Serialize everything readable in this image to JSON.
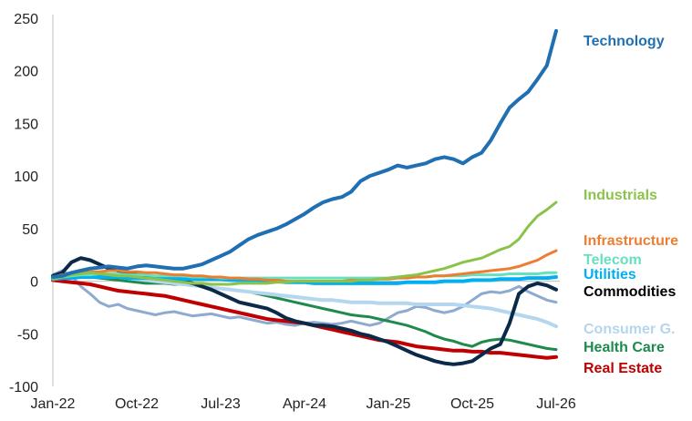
{
  "chart_data": {
    "type": "line",
    "title": "",
    "xlabel": "",
    "ylabel": "",
    "ylim": [
      -100,
      250
    ],
    "yticks": [
      250,
      200,
      150,
      100,
      50,
      0,
      -50,
      -100
    ],
    "xtick_labels": [
      "Jan-22",
      "Oct-22",
      "Jul-23",
      "Apr-24",
      "Jan-25",
      "Oct-25",
      "Jul-26"
    ],
    "grid": false,
    "legend": "direct labels at right end of lines",
    "x": [
      "Jan-22",
      "Feb-22",
      "Mar-22",
      "Apr-22",
      "May-22",
      "Jun-22",
      "Jul-22",
      "Aug-22",
      "Sep-22",
      "Oct-22",
      "Nov-22",
      "Dec-22",
      "Jan-23",
      "Feb-23",
      "Mar-23",
      "Apr-23",
      "May-23",
      "Jun-23",
      "Jul-23",
      "Aug-23",
      "Sep-23",
      "Oct-23",
      "Nov-23",
      "Dec-23",
      "Jan-24",
      "Feb-24",
      "Mar-24",
      "Apr-24",
      "May-24",
      "Jun-24",
      "Jul-24",
      "Aug-24",
      "Sep-24",
      "Oct-24",
      "Nov-24",
      "Dec-24",
      "Jan-25",
      "Feb-25",
      "Mar-25",
      "Apr-25",
      "May-25",
      "Jun-25",
      "Jul-25",
      "Aug-25",
      "Sep-25",
      "Oct-25",
      "Nov-25",
      "Dec-25",
      "Jan-26",
      "Feb-26",
      "Mar-26",
      "Apr-26",
      "May-26",
      "Jun-26",
      "Jul-26"
    ],
    "series": [
      {
        "name": "Technology",
        "color": "#1f6fb2",
        "width": 4,
        "values": [
          4,
          5,
          8,
          10,
          12,
          13,
          14,
          13,
          12,
          14,
          15,
          14,
          13,
          12,
          12,
          14,
          16,
          20,
          24,
          28,
          34,
          40,
          44,
          47,
          50,
          54,
          59,
          64,
          70,
          75,
          78,
          80,
          85,
          95,
          100,
          103,
          106,
          110,
          108,
          110,
          112,
          116,
          118,
          116,
          112,
          118,
          122,
          134,
          150,
          165,
          173,
          180,
          192,
          205,
          238
        ]
      },
      {
        "name": "Industrials",
        "color": "#8bc34a",
        "width": 3,
        "values": [
          2,
          4,
          6,
          7,
          8,
          7,
          6,
          5,
          5,
          4,
          3,
          2,
          1,
          0,
          -1,
          -2,
          -2,
          -3,
          -3,
          -3,
          -2,
          -2,
          -2,
          -2,
          -1,
          -1,
          0,
          0,
          0,
          0,
          0,
          0,
          0,
          1,
          1,
          2,
          3,
          4,
          5,
          6,
          8,
          10,
          12,
          15,
          18,
          20,
          22,
          26,
          30,
          33,
          40,
          52,
          62,
          68,
          75
        ]
      },
      {
        "name": "Infrastructure",
        "color": "#ed7d31",
        "width": 3,
        "values": [
          4,
          6,
          7,
          8,
          9,
          9,
          10,
          10,
          9,
          9,
          8,
          8,
          7,
          6,
          6,
          5,
          5,
          4,
          4,
          3,
          3,
          2,
          2,
          1,
          1,
          0,
          0,
          0,
          0,
          0,
          0,
          0,
          1,
          1,
          1,
          2,
          2,
          3,
          3,
          4,
          4,
          5,
          5,
          6,
          7,
          8,
          9,
          10,
          11,
          12,
          14,
          17,
          20,
          25,
          29
        ]
      },
      {
        "name": "Telecom",
        "color": "#66e0c0",
        "width": 3,
        "values": [
          3,
          4,
          5,
          6,
          6,
          7,
          7,
          7,
          6,
          6,
          6,
          5,
          5,
          5,
          5,
          4,
          4,
          4,
          3,
          3,
          3,
          3,
          3,
          3,
          3,
          3,
          3,
          3,
          3,
          3,
          3,
          3,
          3,
          3,
          3,
          3,
          3,
          4,
          4,
          4,
          4,
          5,
          5,
          5,
          5,
          6,
          6,
          6,
          6,
          7,
          7,
          7,
          7,
          8,
          8
        ]
      },
      {
        "name": "Utilities",
        "color": "#00b0f0",
        "width": 4,
        "values": [
          2,
          3,
          3,
          4,
          4,
          4,
          4,
          4,
          3,
          3,
          3,
          3,
          3,
          3,
          2,
          2,
          2,
          2,
          2,
          1,
          1,
          1,
          1,
          0,
          0,
          -1,
          -1,
          -1,
          -2,
          -2,
          -2,
          -2,
          -2,
          -2,
          -2,
          -2,
          -2,
          -2,
          -1,
          -1,
          -1,
          -1,
          0,
          0,
          0,
          1,
          1,
          1,
          2,
          2,
          2,
          3,
          3,
          3,
          4
        ]
      },
      {
        "name": "Commodities",
        "color": "#0b2a4a",
        "width": 4,
        "values": [
          5,
          8,
          18,
          22,
          20,
          16,
          12,
          10,
          8,
          6,
          5,
          4,
          3,
          2,
          0,
          -2,
          -5,
          -8,
          -12,
          -16,
          -20,
          -22,
          -24,
          -26,
          -30,
          -35,
          -38,
          -40,
          -42,
          -42,
          -43,
          -45,
          -47,
          -50,
          -52,
          -55,
          -58,
          -62,
          -66,
          -70,
          -73,
          -76,
          -78,
          -79,
          -78,
          -76,
          -70,
          -64,
          -60,
          -40,
          -12,
          -5,
          -2,
          -4,
          -8
        ]
      },
      {
        "name": "Consumer G.",
        "color": "#b4d6ee",
        "width": 4,
        "values": [
          2,
          3,
          4,
          5,
          5,
          5,
          5,
          4,
          3,
          2,
          1,
          0,
          -1,
          -2,
          -3,
          -4,
          -5,
          -6,
          -7,
          -8,
          -9,
          -10,
          -11,
          -12,
          -13,
          -14,
          -15,
          -16,
          -17,
          -18,
          -18,
          -19,
          -20,
          -20,
          -20,
          -21,
          -21,
          -21,
          -21,
          -22,
          -22,
          -22,
          -22,
          -22,
          -23,
          -24,
          -25,
          -26,
          -28,
          -30,
          -32,
          -34,
          -36,
          -39,
          -43
        ]
      },
      {
        "name": "Health Care",
        "color": "#1e8a4c",
        "width": 3,
        "values": [
          2,
          3,
          4,
          5,
          4,
          3,
          2,
          1,
          0,
          -1,
          -2,
          -2,
          -2,
          -3,
          -3,
          -4,
          -5,
          -6,
          -7,
          -8,
          -9,
          -10,
          -12,
          -14,
          -16,
          -18,
          -20,
          -22,
          -24,
          -26,
          -28,
          -30,
          -32,
          -33,
          -34,
          -36,
          -38,
          -40,
          -42,
          -45,
          -48,
          -52,
          -55,
          -57,
          -60,
          -62,
          -58,
          -56,
          -55,
          -56,
          -58,
          -60,
          -62,
          -64,
          -65
        ]
      },
      {
        "name": "Real Estate",
        "color": "#c00000",
        "width": 4,
        "values": [
          1,
          0,
          -1,
          -2,
          -3,
          -5,
          -7,
          -9,
          -10,
          -11,
          -12,
          -13,
          -14,
          -16,
          -18,
          -20,
          -22,
          -24,
          -26,
          -28,
          -30,
          -32,
          -34,
          -36,
          -37,
          -38,
          -39,
          -40,
          -42,
          -44,
          -46,
          -48,
          -50,
          -52,
          -54,
          -56,
          -57,
          -58,
          -60,
          -62,
          -63,
          -64,
          -65,
          -66,
          -66,
          -67,
          -67,
          -68,
          -68,
          -69,
          -70,
          -71,
          -72,
          -73,
          -72
        ]
      },
      {
        "name": "",
        "color": "#8eaad0",
        "width": 3,
        "values": [
          6,
          10,
          5,
          -5,
          -12,
          -20,
          -24,
          -22,
          -26,
          -28,
          -30,
          -32,
          -30,
          -29,
          -31,
          -33,
          -32,
          -31,
          -33,
          -35,
          -34,
          -36,
          -38,
          -40,
          -39,
          -41,
          -42,
          -40,
          -39,
          -40,
          -41,
          -40,
          -38,
          -40,
          -42,
          -40,
          -35,
          -30,
          -28,
          -24,
          -25,
          -28,
          -30,
          -28,
          -24,
          -18,
          -12,
          -10,
          -11,
          -9,
          -5,
          -10,
          -14,
          -18,
          -20
        ]
      }
    ]
  }
}
